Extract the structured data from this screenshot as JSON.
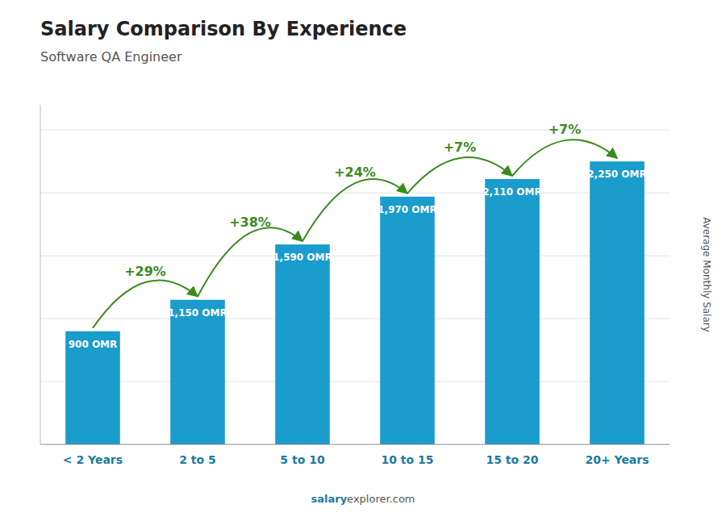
{
  "chart_data": {
    "type": "bar",
    "title": "Salary Comparison By Experience",
    "subtitle": "Software QA Engineer",
    "ylabel": "Average Monthly Salary",
    "categories": [
      "< 2 Years",
      "2 to 5",
      "5 to 10",
      "10 to 15",
      "15 to 20",
      "20+ Years"
    ],
    "values": [
      900,
      1150,
      1590,
      1970,
      2110,
      2250
    ],
    "value_labels": [
      "900 OMR",
      "1,150 OMR",
      "1,590 OMR",
      "1,970 OMR",
      "2,110 OMR",
      "2,250 OMR"
    ],
    "data_labels": true,
    "annotations": [
      "+29%",
      "+38%",
      "+24%",
      "+7%",
      "+7%"
    ],
    "watermark": [
      "salary",
      "explorer.com"
    ],
    "color": "#1a9ccc",
    "ylim": [
      0,
      2700
    ],
    "yticks": [
      500,
      1000,
      1500,
      2000,
      2500
    ],
    "grid": true,
    "tick_labels": "x"
  }
}
